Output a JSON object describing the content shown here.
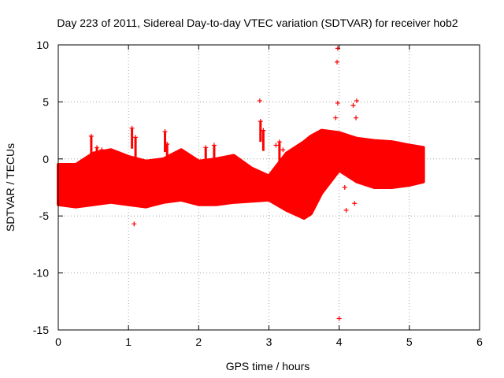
{
  "chart_data": {
    "type": "scatter",
    "title": "Day 223 of 2011, Sidereal Day-to-day VTEC variation (SDTVAR) for receiver hob2",
    "xlabel": "GPS time / hours",
    "ylabel": "SDTVAR / TECUs",
    "xlim": [
      0,
      6
    ],
    "ylim": [
      -15,
      10
    ],
    "xticks": [
      "0",
      "1",
      "2",
      "3",
      "4",
      "5",
      "6"
    ],
    "yticks": [
      "10",
      "5",
      "0",
      "-5",
      "-10",
      "-15"
    ],
    "grid": true,
    "marker": "+",
    "color": "#ff0000",
    "band": {
      "x": [
        0.0,
        0.25,
        0.5,
        0.75,
        1.0,
        1.25,
        1.5,
        1.75,
        2.0,
        2.25,
        2.5,
        2.75,
        3.0,
        3.25,
        3.5,
        3.6,
        3.75,
        4.0,
        4.25,
        4.5,
        4.75,
        5.0,
        5.2
      ],
      "upper": [
        -0.5,
        -0.5,
        0.5,
        0.8,
        0.2,
        -0.2,
        0.0,
        0.8,
        -0.2,
        0.0,
        0.3,
        -0.8,
        -1.5,
        0.5,
        1.5,
        2.0,
        2.5,
        2.3,
        1.8,
        1.6,
        1.5,
        1.2,
        1.0
      ],
      "lower": [
        -4.0,
        -4.2,
        -4.0,
        -3.8,
        -4.0,
        -4.2,
        -3.8,
        -3.6,
        -4.0,
        -4.0,
        -3.8,
        -3.7,
        -3.6,
        -4.5,
        -5.2,
        -4.8,
        -3.0,
        -1.0,
        -2.0,
        -2.5,
        -2.5,
        -2.3,
        -2.0
      ]
    },
    "spikes": [
      {
        "x": 0.47,
        "y": 2.0
      },
      {
        "x": 0.55,
        "y": 1.0
      },
      {
        "x": 0.62,
        "y": 0.8
      },
      {
        "x": 1.05,
        "y": 2.7
      },
      {
        "x": 1.1,
        "y": 1.9
      },
      {
        "x": 1.52,
        "y": 2.4
      },
      {
        "x": 1.55,
        "y": 1.3
      },
      {
        "x": 2.1,
        "y": 1.0
      },
      {
        "x": 2.22,
        "y": 1.2
      },
      {
        "x": 2.88,
        "y": 3.3
      },
      {
        "x": 2.92,
        "y": 2.5
      },
      {
        "x": 3.15,
        "y": 1.5
      }
    ],
    "outliers": [
      {
        "x": 3.98,
        "y": 9.7
      },
      {
        "x": 3.97,
        "y": 8.5
      },
      {
        "x": 2.87,
        "y": 5.1
      },
      {
        "x": 3.98,
        "y": 4.9
      },
      {
        "x": 4.25,
        "y": 5.1
      },
      {
        "x": 4.2,
        "y": 4.7
      },
      {
        "x": 4.24,
        "y": 3.6
      },
      {
        "x": 3.95,
        "y": 3.6
      },
      {
        "x": 1.08,
        "y": -5.7
      },
      {
        "x": 4.08,
        "y": -2.5
      },
      {
        "x": 4.22,
        "y": -3.9
      },
      {
        "x": 4.1,
        "y": -4.5
      },
      {
        "x": 4.0,
        "y": -14.0
      },
      {
        "x": 3.1,
        "y": 1.2
      },
      {
        "x": 3.2,
        "y": 0.8
      }
    ]
  }
}
